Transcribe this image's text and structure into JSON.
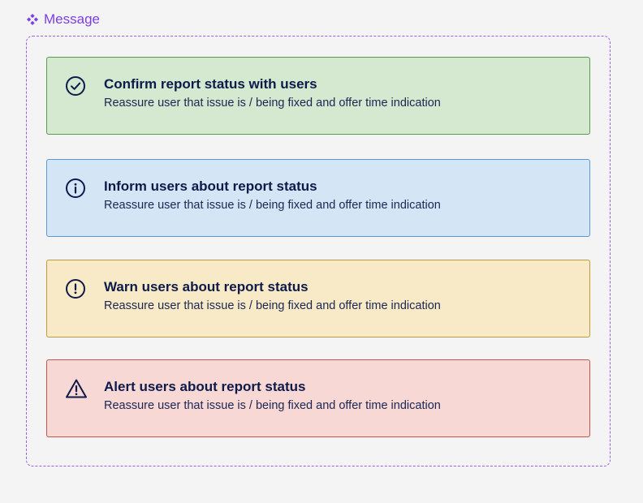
{
  "component": {
    "icon": "component-diamond-icon",
    "label": "Message"
  },
  "messages": [
    {
      "variant": "success",
      "icon": "check-circle-icon",
      "title": "Confirm report status with users",
      "body": "Reassure user that issue is / being fixed and offer time indication"
    },
    {
      "variant": "info",
      "icon": "info-circle-icon",
      "title": "Inform users about report status",
      "body": "Reassure user that issue is / being fixed and offer time indication"
    },
    {
      "variant": "warning",
      "icon": "exclamation-circle-icon",
      "title": "Warn users about report status",
      "body": "Reassure user that issue is / being fixed and offer time indication"
    },
    {
      "variant": "danger",
      "icon": "warning-triangle-icon",
      "title": "Alert users about report status",
      "body": "Reassure user that issue is / being fixed and offer time indication"
    }
  ],
  "colors": {
    "accent": "#7b3fe4",
    "text": "#0d1a4a",
    "success_bg": "#d5e8d0",
    "success_border": "#559c4b",
    "info_bg": "#d4e6f6",
    "info_border": "#5b9ad6",
    "warning_bg": "#f8eac6",
    "warning_border": "#c09a36",
    "danger_bg": "#f7d8d4",
    "danger_border": "#c6524b"
  }
}
